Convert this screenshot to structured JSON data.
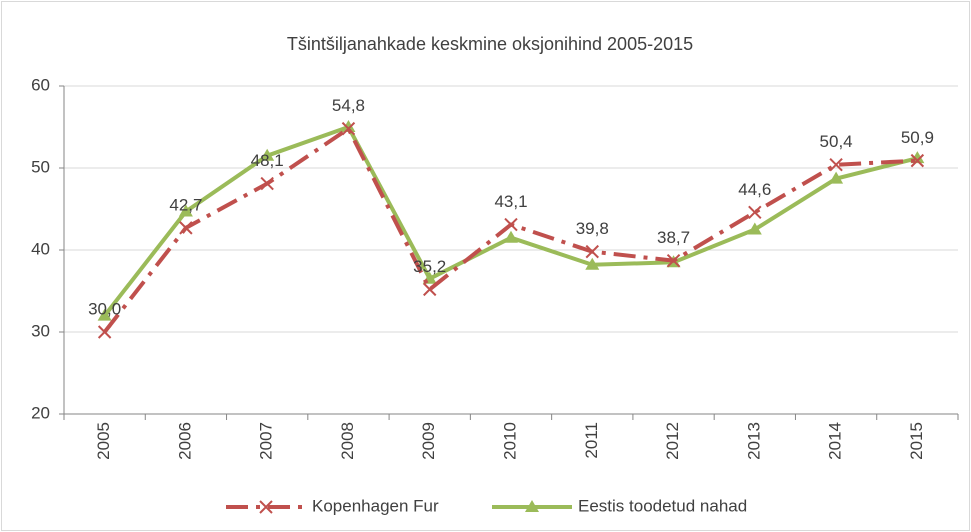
{
  "chart_data": {
    "type": "line",
    "title": "Tšintšiljanahkade  keskmine oksjonihind 2005-2015",
    "categories": [
      "2005",
      "2006",
      "2007",
      "2008",
      "2009",
      "2010",
      "2011",
      "2012",
      "2013",
      "2014",
      "2015"
    ],
    "series": [
      {
        "name": "Kopenhagen Fur",
        "color": "#c0504d",
        "values": [
          30.0,
          42.7,
          48.1,
          54.8,
          35.2,
          43.1,
          39.8,
          38.7,
          44.6,
          50.4,
          50.9
        ],
        "value_labels": [
          "30,0",
          "42,7",
          "48,1",
          "54,8",
          "35,2",
          "43,1",
          "39,8",
          "38,7",
          "44,6",
          "50,4",
          "50,9"
        ]
      },
      {
        "name": "Eestis toodetud nahad",
        "color": "#9bbb59",
        "values": [
          32.0,
          44.7,
          51.5,
          55.0,
          36.5,
          41.5,
          38.2,
          38.5,
          42.5,
          48.7,
          51.2
        ]
      }
    ],
    "ylim": [
      20,
      60
    ],
    "yticks": [
      20,
      30,
      40,
      50,
      60
    ],
    "grid": true,
    "legend": "bottom"
  }
}
